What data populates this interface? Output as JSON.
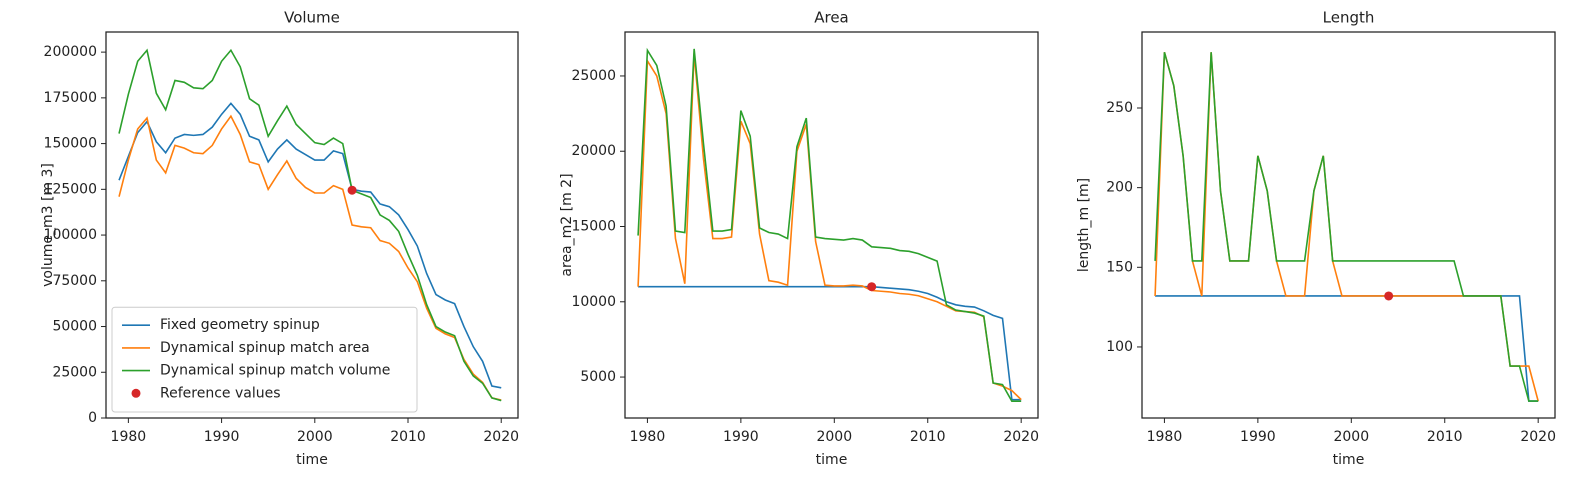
{
  "chart_data": [
    {
      "type": "line",
      "title": "Volume",
      "xlabel": "time",
      "ylabel": "volume_m3 [m 3]",
      "x": [
        1979,
        1980,
        1981,
        1982,
        1983,
        1984,
        1985,
        1986,
        1987,
        1988,
        1989,
        1990,
        1991,
        1992,
        1993,
        1994,
        1995,
        1996,
        1997,
        1998,
        1999,
        2000,
        2001,
        2002,
        2003,
        2004,
        2005,
        2006,
        2007,
        2008,
        2009,
        2010,
        2011,
        2012,
        2013,
        2014,
        2015,
        2016,
        2017,
        2018,
        2019,
        2020
      ],
      "series": [
        {
          "name": "Fixed geometry spinup",
          "color": "#1f77b4",
          "values": [
            130000,
            143000,
            156000,
            162000,
            151000,
            145000,
            153000,
            155000,
            154500,
            155000,
            159000,
            166000,
            172000,
            166000,
            154000,
            152000,
            140000,
            147000,
            152000,
            147000,
            144000,
            141000,
            141000,
            146000,
            144500,
            125000,
            124000,
            123500,
            117000,
            115500,
            111000,
            103000,
            94000,
            79000,
            67500,
            64500,
            62500,
            50000,
            39000,
            31000,
            17500,
            16500
          ]
        },
        {
          "name": "Dynamical spinup match area",
          "color": "#ff7f0e",
          "values": [
            121000,
            141000,
            158000,
            164000,
            141000,
            134000,
            149000,
            147500,
            145000,
            144500,
            149000,
            158000,
            165000,
            155000,
            140000,
            138500,
            125000,
            133000,
            140500,
            131000,
            126000,
            123000,
            123000,
            127000,
            125000,
            105500,
            104500,
            104000,
            97000,
            95500,
            91000,
            82000,
            74500,
            60000,
            49000,
            46000,
            44000,
            32000,
            24000,
            19500,
            11000,
            9800
          ]
        },
        {
          "name": "Dynamical spinup match volume",
          "color": "#2ca02c",
          "values": [
            155500,
            177000,
            195000,
            201000,
            177500,
            168500,
            184500,
            183500,
            180500,
            180000,
            184500,
            195000,
            201000,
            192000,
            174500,
            171000,
            154000,
            162500,
            170500,
            160500,
            155500,
            150500,
            149500,
            153000,
            150000,
            124500,
            122500,
            120500,
            111000,
            108000,
            102000,
            89500,
            78000,
            62000,
            50000,
            47000,
            45000,
            31000,
            23000,
            19000,
            11000,
            9500
          ]
        }
      ],
      "reference": {
        "name": "Reference values",
        "color": "#d62728",
        "x": 2004,
        "y": 124500
      },
      "xlim": [
        1977.6,
        2021.8
      ],
      "xticks": [
        1980,
        1990,
        2000,
        2010,
        2020
      ],
      "ylim": [
        0,
        211000
      ],
      "yticks": [
        0,
        25000,
        50000,
        75000,
        100000,
        125000,
        150000,
        175000,
        200000
      ],
      "legend": "lower left"
    },
    {
      "type": "line",
      "title": "Area",
      "xlabel": "time",
      "ylabel": "area_m2 [m 2]",
      "x": [
        1979,
        1980,
        1981,
        1982,
        1983,
        1984,
        1985,
        1986,
        1987,
        1988,
        1989,
        1990,
        1991,
        1992,
        1993,
        1994,
        1995,
        1996,
        1997,
        1998,
        1999,
        2000,
        2001,
        2002,
        2003,
        2004,
        2005,
        2006,
        2007,
        2008,
        2009,
        2010,
        2011,
        2012,
        2013,
        2014,
        2015,
        2016,
        2017,
        2018,
        2019,
        2020
      ],
      "series": [
        {
          "color": "#1f77b4",
          "values": [
            11000,
            11000,
            11000,
            11000,
            11000,
            11000,
            11000,
            11000,
            11000,
            11000,
            11000,
            11000,
            11000,
            11000,
            11000,
            11000,
            11000,
            11000,
            11000,
            11000,
            11000,
            11000,
            11000,
            11000,
            11000,
            11000,
            10950,
            10900,
            10850,
            10800,
            10700,
            10550,
            10300,
            10000,
            9800,
            9700,
            9650,
            9400,
            9100,
            8900,
            3500,
            3500
          ]
        },
        {
          "color": "#ff7f0e",
          "values": [
            11000,
            26000,
            25000,
            22500,
            14200,
            11200,
            26500,
            19500,
            14200,
            14200,
            14300,
            22000,
            20500,
            14500,
            11400,
            11300,
            11100,
            20000,
            21800,
            14000,
            11100,
            11050,
            11050,
            11100,
            11050,
            10750,
            10700,
            10650,
            10550,
            10500,
            10400,
            10200,
            10000,
            9700,
            9400,
            9350,
            9300,
            9000,
            4600,
            4400,
            4100,
            3500
          ]
        },
        {
          "color": "#2ca02c",
          "values": [
            14400,
            26700,
            25700,
            23000,
            14700,
            14600,
            26800,
            20500,
            14700,
            14700,
            14800,
            22700,
            21000,
            14900,
            14600,
            14500,
            14200,
            20300,
            22200,
            14300,
            14200,
            14150,
            14100,
            14200,
            14100,
            13650,
            13600,
            13550,
            13400,
            13350,
            13200,
            12950,
            12700,
            9800,
            9450,
            9350,
            9250,
            9050,
            4600,
            4500,
            3400,
            3400
          ]
        }
      ],
      "reference": {
        "color": "#d62728",
        "x": 2004,
        "y": 11000
      },
      "xlim": [
        1977.6,
        2021.8
      ],
      "xticks": [
        1980,
        1990,
        2000,
        2010,
        2020
      ],
      "ylim": [
        2280,
        27920
      ],
      "yticks": [
        5000,
        10000,
        15000,
        20000,
        25000
      ]
    },
    {
      "type": "line",
      "title": "Length",
      "xlabel": "time",
      "ylabel": "length_m [m]",
      "x": [
        1979,
        1980,
        1981,
        1982,
        1983,
        1984,
        1985,
        1986,
        1987,
        1988,
        1989,
        1990,
        1991,
        1992,
        1993,
        1994,
        1995,
        1996,
        1997,
        1998,
        1999,
        2000,
        2001,
        2002,
        2003,
        2004,
        2005,
        2006,
        2007,
        2008,
        2009,
        2010,
        2011,
        2012,
        2013,
        2014,
        2015,
        2016,
        2017,
        2018,
        2019,
        2020
      ],
      "series": [
        {
          "color": "#1f77b4",
          "values": [
            132,
            132,
            132,
            132,
            132,
            132,
            132,
            132,
            132,
            132,
            132,
            132,
            132,
            132,
            132,
            132,
            132,
            132,
            132,
            132,
            132,
            132,
            132,
            132,
            132,
            132,
            132,
            132,
            132,
            132,
            132,
            132,
            132,
            132,
            132,
            132,
            132,
            132,
            132,
            132,
            66,
            66
          ]
        },
        {
          "color": "#ff7f0e",
          "values": [
            132,
            285,
            264,
            220,
            154,
            132,
            285,
            198,
            154,
            154,
            154,
            220,
            198,
            154,
            132,
            132,
            132,
            198,
            220,
            154,
            132,
            132,
            132,
            132,
            132,
            132,
            132,
            132,
            132,
            132,
            132,
            132,
            132,
            132,
            132,
            132,
            132,
            132,
            88,
            88,
            88,
            66
          ]
        },
        {
          "color": "#2ca02c",
          "values": [
            154,
            285,
            264,
            220,
            154,
            154,
            285,
            198,
            154,
            154,
            154,
            220,
            198,
            154,
            154,
            154,
            154,
            198,
            220,
            154,
            154,
            154,
            154,
            154,
            154,
            154,
            154,
            154,
            154,
            154,
            154,
            154,
            154,
            132,
            132,
            132,
            132,
            132,
            88,
            88,
            66,
            66
          ]
        }
      ],
      "reference": {
        "color": "#d62728",
        "x": 2004,
        "y": 132
      },
      "xlim": [
        1977.6,
        2021.8
      ],
      "xticks": [
        1980,
        1990,
        2000,
        2010,
        2020
      ],
      "ylim": [
        55.4,
        297.7
      ],
      "yticks": [
        100,
        150,
        200,
        250
      ]
    }
  ]
}
